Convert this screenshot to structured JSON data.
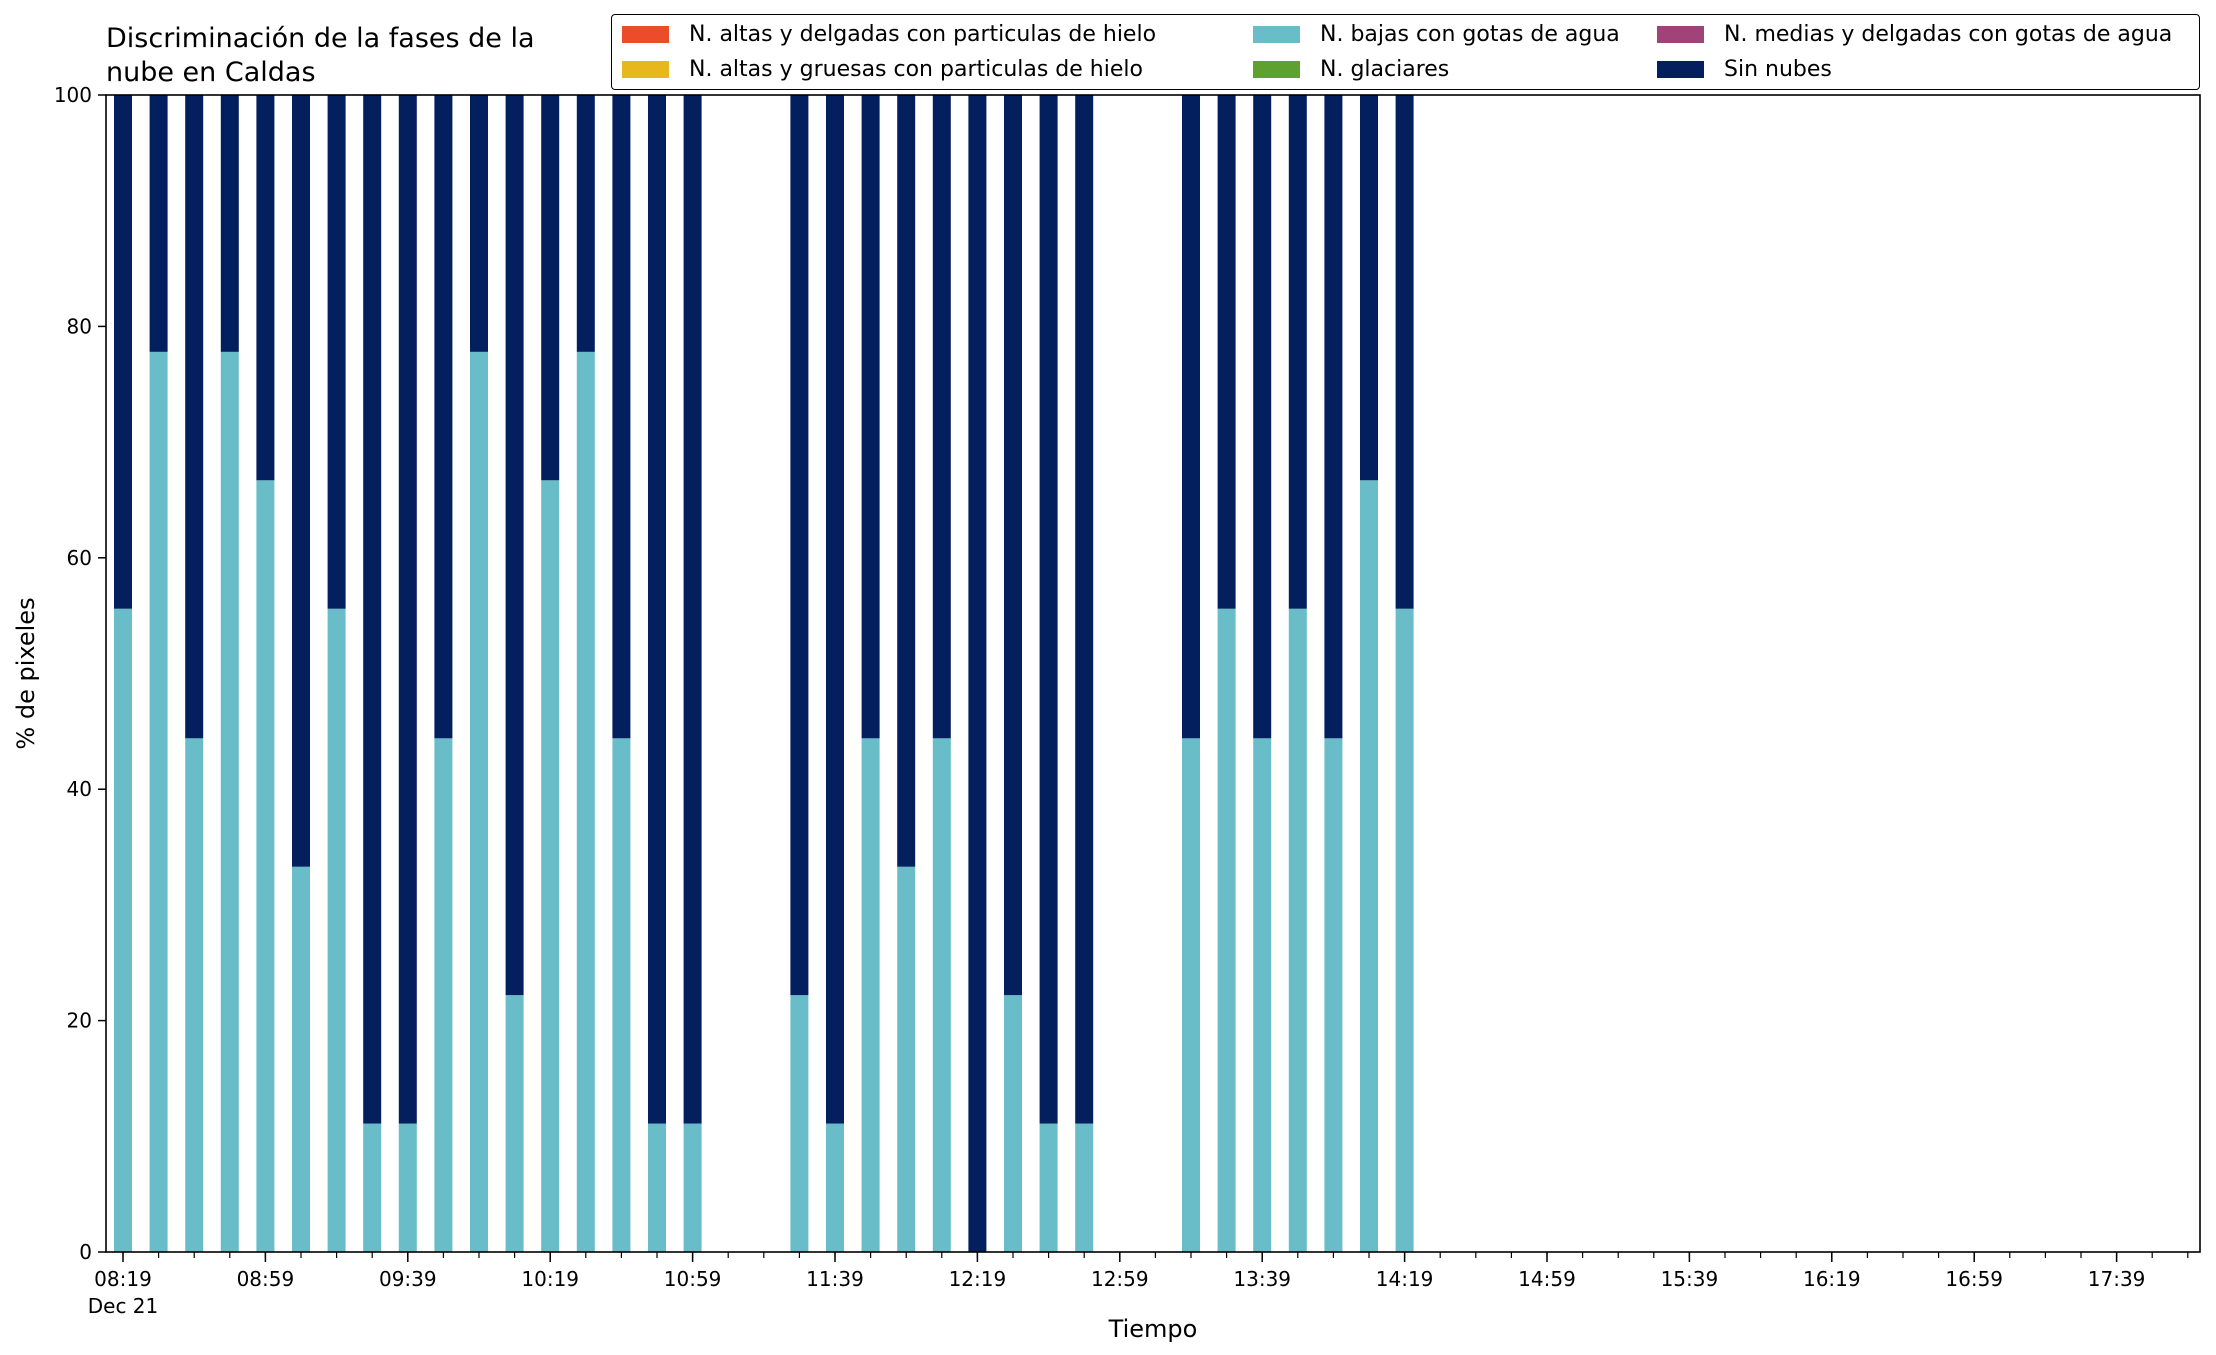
{
  "chart_data": {
    "type": "bar",
    "stacked": true,
    "title_lines": [
      "Discriminación de la fases de la",
      "nube en Caldas"
    ],
    "xlabel": "Tiempo",
    "ylabel": "% de pixeles",
    "ylim": [
      0,
      100
    ],
    "yticks": [
      0,
      20,
      40,
      60,
      80,
      100
    ],
    "xtick_labels": [
      "08:19",
      "08:59",
      "09:39",
      "10:19",
      "10:59",
      "11:39",
      "12:19",
      "12:59",
      "13:39",
      "14:19",
      "14:59",
      "15:39",
      "16:19",
      "16:59",
      "17:39"
    ],
    "xtick_date_label": "Dec 21",
    "slot_count": 59,
    "grid": false,
    "legend_position": "top-right",
    "legend": [
      {
        "name": "N. altas y delgadas con particulas de hielo",
        "color": "#ea4c2c"
      },
      {
        "name": "N. bajas con gotas de agua",
        "color": "#69bdc9"
      },
      {
        "name": "N. medias y delgadas con gotas de agua",
        "color": "#a04378"
      },
      {
        "name": "N. altas y gruesas con particulas de hielo",
        "color": "#e6b81e"
      },
      {
        "name": "N. glaciares",
        "color": "#5ea12f"
      },
      {
        "name": "Sin nubes",
        "color": "#041f5e"
      }
    ],
    "series": [
      {
        "name": "N. bajas con gotas de agua",
        "color": "#69bdc9",
        "values": [
          55.6,
          77.8,
          44.4,
          77.8,
          66.7,
          33.3,
          55.6,
          11.1,
          11.1,
          44.4,
          77.8,
          22.2,
          66.7,
          77.8,
          44.4,
          11.1,
          11.1,
          null,
          null,
          22.2,
          11.1,
          44.4,
          33.3,
          44.4,
          0,
          22.2,
          11.1,
          11.1,
          null,
          null,
          44.4,
          55.6,
          44.4,
          55.6,
          44.4,
          66.7,
          55.6
        ]
      },
      {
        "name": "Sin nubes",
        "color": "#041f5e",
        "values": [
          44.4,
          22.2,
          55.6,
          22.2,
          33.3,
          66.7,
          44.4,
          88.9,
          88.9,
          55.6,
          22.2,
          77.8,
          33.3,
          22.2,
          55.6,
          88.9,
          88.9,
          null,
          null,
          77.8,
          88.9,
          55.6,
          66.7,
          55.6,
          100,
          77.8,
          88.9,
          88.9,
          null,
          null,
          55.6,
          44.4,
          55.6,
          44.4,
          55.6,
          33.3,
          44.4
        ]
      }
    ]
  }
}
